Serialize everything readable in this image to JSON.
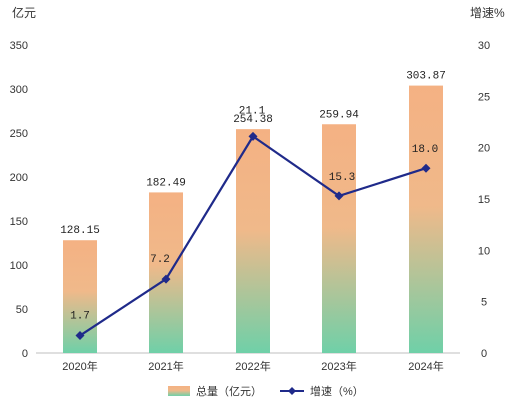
{
  "chart_data": {
    "type": "bar",
    "categories": [
      "2020年",
      "2021年",
      "2022年",
      "2023年",
      "2024年"
    ],
    "series": [
      {
        "name": "总量（亿元）",
        "type": "bar",
        "axis": "left",
        "values": [
          128.15,
          182.49,
          254.38,
          259.94,
          303.87
        ],
        "labels": [
          "128.15",
          "182.49",
          "254.38",
          "259.94",
          "303.87"
        ],
        "color_top": "#f4b183",
        "color_bottom": "#6fd0a8"
      },
      {
        "name": "增速（%）",
        "type": "line",
        "axis": "right",
        "values": [
          1.7,
          7.2,
          21.1,
          15.3,
          18.0
        ],
        "labels": [
          "1.7",
          "7.2",
          "21.1",
          "15.3",
          "18.0"
        ],
        "color": "#1f2a8a"
      }
    ],
    "left_axis": {
      "unit": "亿元",
      "ylim": [
        0,
        350
      ],
      "ticks": [
        "0",
        "50",
        "100",
        "150",
        "200",
        "250",
        "300",
        "350"
      ]
    },
    "right_axis": {
      "unit": "增速%",
      "ylim": [
        0,
        30
      ],
      "ticks": [
        "0",
        "5",
        "10",
        "15",
        "20",
        "25",
        "30"
      ]
    },
    "grid": false,
    "legend": {
      "position": "bottom",
      "items": [
        "总量（亿元）",
        "增速（%）"
      ]
    }
  }
}
